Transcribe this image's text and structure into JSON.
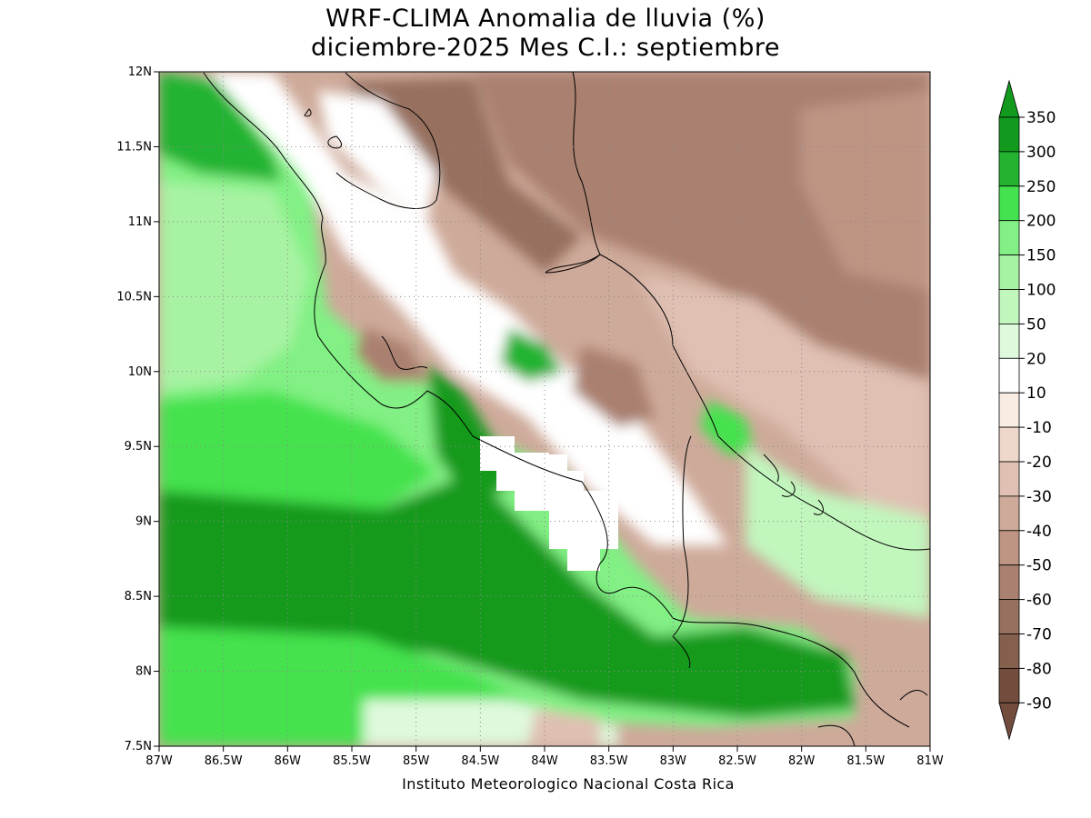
{
  "title_line1": "WRF-CLIMA Anomalia de lluvia (%)",
  "title_line2": "diciembre-2025 Mes C.I.: septiembre",
  "footer": "Instituto Meteorologico Nacional Costa Rica",
  "map": {
    "lon_range": [
      -87,
      -81
    ],
    "lat_range": [
      7.5,
      12
    ],
    "x_ticks": [
      {
        "lon": -87,
        "label": "87W"
      },
      {
        "lon": -86.5,
        "label": "86.5W"
      },
      {
        "lon": -86,
        "label": "86W"
      },
      {
        "lon": -85.5,
        "label": "85.5W"
      },
      {
        "lon": -85,
        "label": "85W"
      },
      {
        "lon": -84.5,
        "label": "84.5W"
      },
      {
        "lon": -84,
        "label": "84W"
      },
      {
        "lon": -83.5,
        "label": "83.5W"
      },
      {
        "lon": -83,
        "label": "83W"
      },
      {
        "lon": -82.5,
        "label": "82.5W"
      },
      {
        "lon": -82,
        "label": "82W"
      },
      {
        "lon": -81.5,
        "label": "81.5W"
      },
      {
        "lon": -81,
        "label": "81W"
      }
    ],
    "y_ticks": [
      {
        "lat": 7.5,
        "label": "7.5N"
      },
      {
        "lat": 8,
        "label": "8N"
      },
      {
        "lat": 8.5,
        "label": "8.5N"
      },
      {
        "lat": 9,
        "label": "9N"
      },
      {
        "lat": 9.5,
        "label": "9.5N"
      },
      {
        "lat": 10,
        "label": "10N"
      },
      {
        "lat": 10.5,
        "label": "10.5N"
      },
      {
        "lat": 11,
        "label": "11N"
      },
      {
        "lat": 11.5,
        "label": "11.5N"
      },
      {
        "lat": 12,
        "label": "12N"
      }
    ],
    "grid": true,
    "grid_style": "dotted"
  },
  "colorbar": {
    "labels": [
      "350",
      "300",
      "250",
      "200",
      "150",
      "100",
      "50",
      "20",
      "10",
      "-10",
      "-20",
      "-30",
      "-40",
      "-50",
      "-60",
      "-70",
      "-80",
      "-90"
    ],
    "colors": [
      "#129a1e",
      "#23b331",
      "#44e24e",
      "#82f084",
      "#a7f3a3",
      "#c1f6bd",
      "#dff9dd",
      "#ffffff",
      "#f9ece2",
      "#eed8cb",
      "#dfc0b2",
      "#ceaa9a",
      "#be9483",
      "#aa8070",
      "#97705f",
      "#85604f",
      "#724c3d"
    ],
    "top_color": "#129a1e",
    "bottom_color": "#724c3d"
  }
}
